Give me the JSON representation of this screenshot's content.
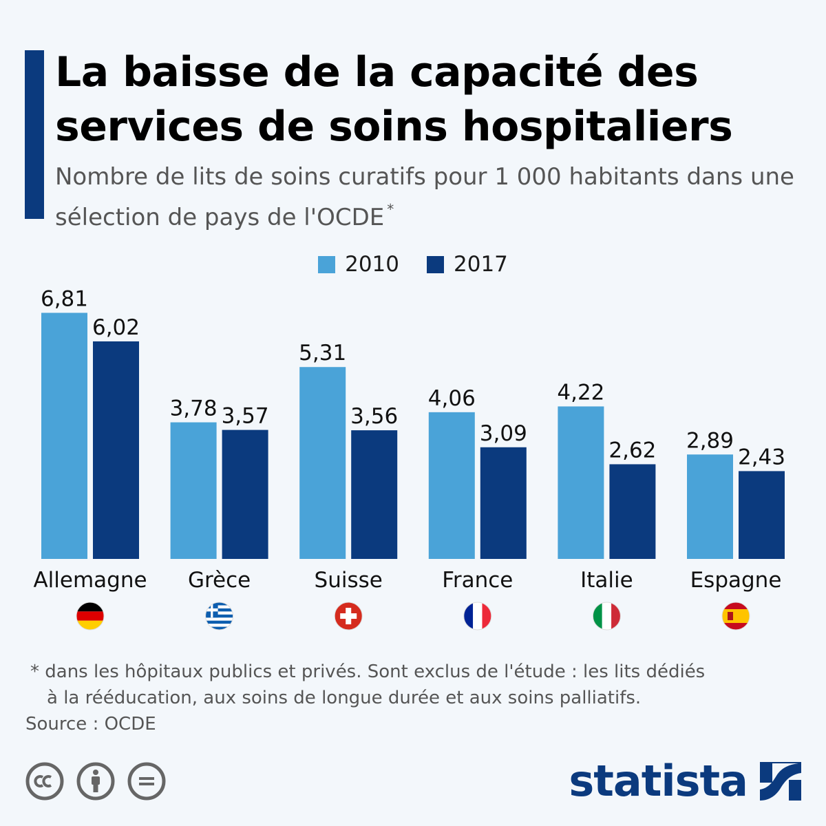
{
  "header": {
    "title": "La baisse de la capacité des services de soins hospitaliers",
    "subtitle": "Nombre de lits de soins curatifs pour 1 000 habitants dans une sélection de pays de l'OCDE",
    "subtitle_mark": "*"
  },
  "colors": {
    "accent": "#0b3a7e",
    "series_2010": "#4aa3d8",
    "series_2017": "#0b3a7e"
  },
  "chart_data": {
    "type": "bar",
    "categories": [
      "Allemagne",
      "Grèce",
      "Suisse",
      "France",
      "Italie",
      "Espagne"
    ],
    "series": [
      {
        "name": "2010",
        "values": [
          6.81,
          3.78,
          5.31,
          4.06,
          4.22,
          2.89
        ],
        "labels": [
          "6,81",
          "3,78",
          "5,31",
          "4,06",
          "4,22",
          "2,89"
        ]
      },
      {
        "name": "2017",
        "values": [
          6.02,
          3.57,
          3.56,
          3.09,
          2.62,
          2.43
        ],
        "labels": [
          "6,02",
          "3,57",
          "3,56",
          "3,09",
          "2,62",
          "2,43"
        ]
      }
    ],
    "flags": [
      "germany-flag-icon",
      "greece-flag-icon",
      "switzerland-flag-icon",
      "france-flag-icon",
      "italy-flag-icon",
      "spain-flag-icon"
    ],
    "legend": "top-center",
    "grid": false
  },
  "footer": {
    "footnote_line1": "* dans les hôpitaux publics et privés. Sont exclus de l'étude : les lits dédiés",
    "footnote_line2": "à la rééducation, aux soins de longue durée et aux soins palliatifs.",
    "source": "Source : OCDE",
    "brand": "statista"
  }
}
